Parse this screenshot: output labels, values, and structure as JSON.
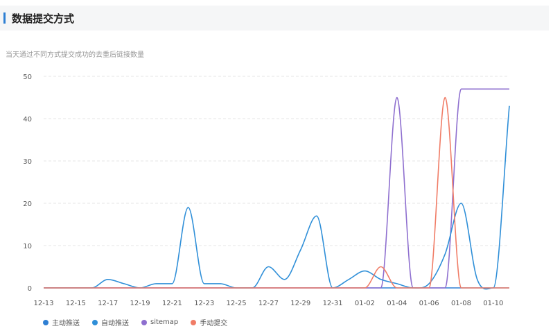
{
  "header": {
    "title": "数据提交方式"
  },
  "subtitle": "当天通过不同方式提交成功的去重后链接数量",
  "chart_data": {
    "type": "line",
    "title": "",
    "xlabel": "",
    "ylabel": "",
    "ylim": [
      0,
      50
    ],
    "yticks": [
      0,
      10,
      20,
      30,
      40,
      50
    ],
    "grid": true,
    "legend_position": "bottom-left",
    "categories": [
      "12-13",
      "12-14",
      "12-15",
      "12-16",
      "12-17",
      "12-18",
      "12-19",
      "12-20",
      "12-21",
      "12-22",
      "12-23",
      "12-24",
      "12-25",
      "12-26",
      "12-27",
      "12-28",
      "12-29",
      "12-30",
      "12-31",
      "01-01",
      "01-02",
      "01-03",
      "01-04",
      "01-05",
      "01-06",
      "01-07",
      "01-08",
      "01-09",
      "01-10",
      "01-11"
    ],
    "xtick_labels": [
      "12-13",
      "12-15",
      "12-17",
      "12-19",
      "12-21",
      "12-23",
      "12-25",
      "12-27",
      "12-29",
      "12-31",
      "01-02",
      "01-04",
      "01-06",
      "01-08",
      "01-10"
    ],
    "series": [
      {
        "name": "主动推送",
        "color": "#2f7fd3",
        "values": [
          0,
          0,
          0,
          0,
          0,
          0,
          0,
          0,
          0,
          0,
          0,
          0,
          0,
          0,
          0,
          0,
          0,
          0,
          0,
          0,
          0,
          0,
          0,
          0,
          0,
          0,
          0,
          0,
          0,
          0
        ]
      },
      {
        "name": "自动推送",
        "color": "#2f8fd8",
        "values": [
          0,
          0,
          0,
          0,
          2,
          1,
          0,
          1,
          1,
          19,
          1,
          1,
          0,
          0,
          5,
          2,
          9,
          17,
          0,
          2,
          4,
          2,
          1,
          0,
          1,
          8,
          20,
          2,
          0,
          43
        ]
      },
      {
        "name": "sitemap",
        "color": "#8e6fcf",
        "values": [
          0,
          0,
          0,
          0,
          0,
          0,
          0,
          0,
          0,
          0,
          0,
          0,
          0,
          0,
          0,
          0,
          0,
          0,
          0,
          0,
          0,
          0,
          45,
          0,
          0,
          0,
          47,
          47,
          47,
          47
        ]
      },
      {
        "name": "手动提交",
        "color": "#f07c66",
        "values": [
          0,
          0,
          0,
          0,
          0,
          0,
          0,
          0,
          0,
          0,
          0,
          0,
          0,
          0,
          0,
          0,
          0,
          0,
          0,
          0,
          0,
          5,
          0,
          0,
          0,
          45,
          0,
          0,
          0,
          0
        ]
      }
    ]
  }
}
